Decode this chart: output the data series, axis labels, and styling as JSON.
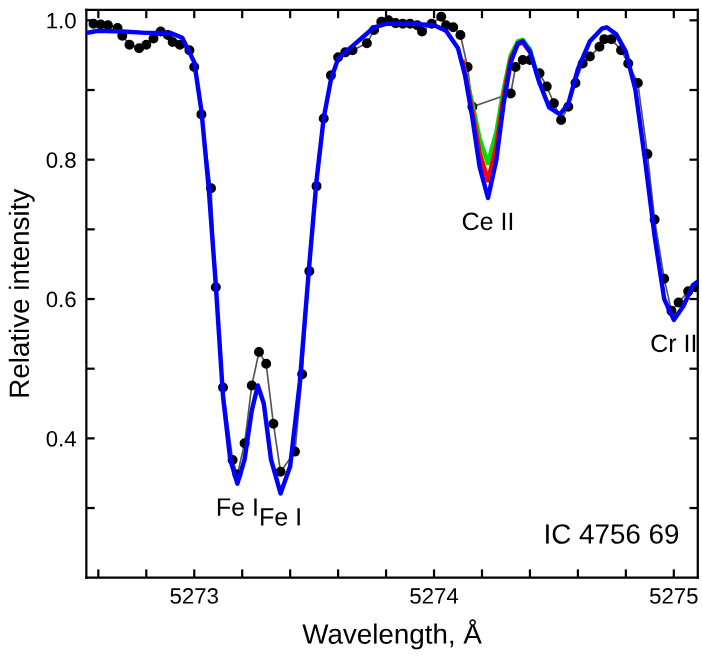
{
  "chart_data": {
    "type": "line",
    "xlabel": "Wavelength, Å",
    "ylabel": "Relative intensity",
    "xlim": [
      5272.55,
      5275.1
    ],
    "ylim": [
      0.2,
      1.015
    ],
    "xticks": [
      {
        "value": 5272.6,
        "label": null
      },
      {
        "value": 5272.8,
        "label": null
      },
      5273,
      {
        "value": 5273.2,
        "label": null
      },
      {
        "value": 5273.4,
        "label": null
      },
      {
        "value": 5273.6,
        "label": null
      },
      {
        "value": 5273.8,
        "label": null
      },
      5274,
      {
        "value": 5274.2,
        "label": null
      },
      {
        "value": 5274.4,
        "label": null
      },
      {
        "value": 5274.6,
        "label": null
      },
      {
        "value": 5274.8,
        "label": null
      },
      5275
    ],
    "yticks": [
      {
        "value": 0.3,
        "label": null
      },
      0.4,
      {
        "value": 0.5,
        "label": null
      },
      0.6,
      {
        "value": 0.7,
        "label": null
      },
      0.8,
      {
        "value": 0.9,
        "label": null
      },
      {
        "value": 1.0,
        "label": "1.0"
      }
    ],
    "grid": false,
    "legend": false,
    "annotations": [
      {
        "text": "Fe I",
        "x": 5273.18,
        "y": 0.335
      },
      {
        "text": "Fe I",
        "x": 5273.36,
        "y": 0.321
      },
      {
        "text": "Ce II",
        "x": 5274.225,
        "y": 0.745
      },
      {
        "text": "Cr II",
        "x": 5275.0,
        "y": 0.57
      },
      "IC 4756 69"
    ],
    "series": [
      {
        "color": "#000000",
        "marker": "circle",
        "x": [
          5272.58,
          5272.61,
          5272.64,
          5272.68,
          5272.7,
          5272.73,
          5272.77,
          5272.8,
          5272.83,
          5272.86,
          5272.89,
          5272.91,
          5272.94,
          5272.98,
          5273.0,
          5273.03,
          5273.07,
          5273.09,
          5273.12,
          5273.16,
          5273.18,
          5273.21,
          5273.24,
          5273.27,
          5273.3,
          5273.33,
          5273.36,
          5273.42,
          5273.45,
          5273.48,
          5273.51,
          5273.54,
          5273.57,
          5273.6,
          5273.63,
          5273.66,
          5273.72,
          5273.75,
          5273.78,
          5273.81,
          5273.84,
          5273.87,
          5273.9,
          5273.93,
          5273.95,
          5273.99,
          5274.03,
          5274.05,
          5274.08,
          5274.11,
          5274.14,
          5274.16,
          5274.32,
          5274.34,
          5274.37,
          5274.4,
          5274.44,
          5274.47,
          5274.5,
          5274.53,
          5274.56,
          5274.59,
          5274.62,
          5274.65,
          5274.69,
          5274.71,
          5274.74,
          5274.78,
          5274.81,
          5274.85,
          5274.89,
          5274.92,
          5274.96,
          5274.99,
          5275.02,
          5275.06,
          5275.09
        ],
        "values": [
          0.995,
          0.994,
          0.993,
          0.989,
          0.978,
          0.965,
          0.96,
          0.965,
          0.974,
          0.984,
          0.979,
          0.969,
          0.965,
          0.957,
          0.933,
          0.865,
          0.759,
          0.617,
          0.473,
          0.369,
          0.348,
          0.393,
          0.476,
          0.524,
          0.507,
          0.421,
          0.352,
          0.381,
          0.492,
          0.64,
          0.762,
          0.859,
          0.921,
          0.947,
          0.954,
          0.957,
          0.967,
          0.986,
          0.998,
          1.0,
          0.996,
          0.995,
          0.995,
          0.993,
          0.984,
          0.995,
          1.005,
          0.993,
          0.99,
          0.979,
          0.933,
          0.876,
          0.895,
          0.933,
          0.943,
          0.943,
          0.924,
          0.905,
          0.881,
          0.857,
          0.876,
          0.91,
          0.938,
          0.948,
          0.962,
          0.973,
          0.973,
          0.957,
          0.938,
          0.91,
          0.808,
          0.714,
          0.629,
          0.583,
          0.595,
          0.611,
          0.617
        ]
      },
      {
        "color": "#00dd00",
        "marker": "none",
        "x": [
          5274.12,
          5274.16,
          5274.19,
          5274.225,
          5274.26,
          5274.29,
          5274.32,
          5274.35,
          5274.37,
          5274.4,
          5274.44
        ],
        "values": [
          0.94,
          0.88,
          0.83,
          0.795,
          0.84,
          0.9,
          0.95,
          0.97,
          0.972,
          0.958,
          0.91
        ]
      },
      {
        "color": "#ff0000",
        "marker": "none",
        "x": [
          5274.12,
          5274.16,
          5274.19,
          5274.225,
          5274.26,
          5274.29,
          5274.32,
          5274.35,
          5274.37,
          5274.4
        ],
        "values": [
          0.94,
          0.87,
          0.81,
          0.77,
          0.82,
          0.89,
          0.945,
          0.966,
          0.968,
          0.955
        ]
      },
      {
        "color": "#0000ff",
        "marker": "none",
        "x": [
          5272.55,
          5272.6,
          5272.7,
          5272.8,
          5272.9,
          5272.95,
          5273.0,
          5273.03,
          5273.06,
          5273.09,
          5273.12,
          5273.15,
          5273.18,
          5273.21,
          5273.24,
          5273.265,
          5273.29,
          5273.32,
          5273.36,
          5273.4,
          5273.44,
          5273.48,
          5273.51,
          5273.54,
          5273.57,
          5273.6,
          5273.65,
          5273.7,
          5273.75,
          5273.8,
          5273.9,
          5274.0,
          5274.05,
          5274.1,
          5274.13,
          5274.16,
          5274.19,
          5274.225,
          5274.26,
          5274.29,
          5274.32,
          5274.35,
          5274.37,
          5274.4,
          5274.44,
          5274.48,
          5274.525,
          5274.56,
          5274.6,
          5274.65,
          5274.7,
          5274.72,
          5274.76,
          5274.8,
          5274.84,
          5274.88,
          5274.92,
          5274.96,
          5275.0,
          5275.04,
          5275.08,
          5275.1
        ],
        "values": [
          0.982,
          0.985,
          0.984,
          0.982,
          0.982,
          0.975,
          0.94,
          0.87,
          0.76,
          0.62,
          0.46,
          0.37,
          0.335,
          0.37,
          0.44,
          0.476,
          0.45,
          0.37,
          0.321,
          0.36,
          0.48,
          0.65,
          0.77,
          0.86,
          0.915,
          0.945,
          0.96,
          0.975,
          0.99,
          0.995,
          0.995,
          0.993,
          0.985,
          0.96,
          0.92,
          0.86,
          0.79,
          0.745,
          0.8,
          0.88,
          0.94,
          0.967,
          0.97,
          0.955,
          0.91,
          0.875,
          0.865,
          0.88,
          0.93,
          0.97,
          0.988,
          0.99,
          0.98,
          0.955,
          0.9,
          0.8,
          0.69,
          0.6,
          0.57,
          0.59,
          0.62,
          0.625
        ]
      }
    ]
  }
}
